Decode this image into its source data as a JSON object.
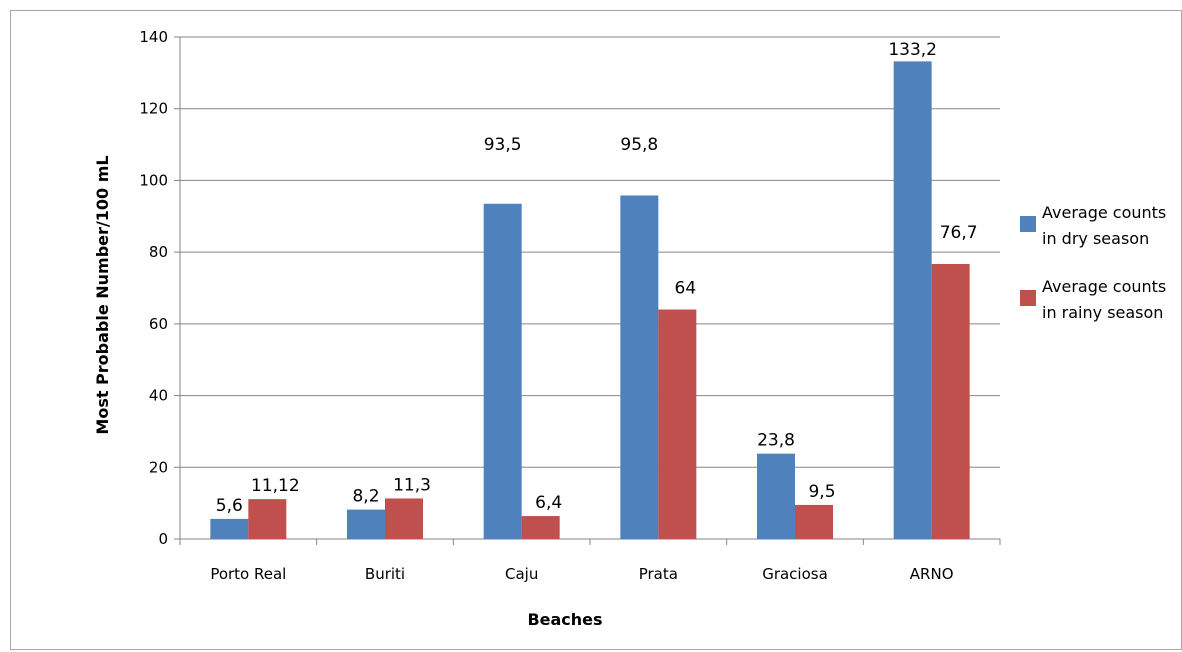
{
  "chart_data": {
    "type": "bar",
    "categories": [
      "Porto Real",
      "Buriti",
      "Caju",
      "Prata",
      "Graciosa",
      "ARNO"
    ],
    "series": [
      {
        "name": "Average counts in dry season",
        "values": [
          5.6,
          8.2,
          93.5,
          95.8,
          23.8,
          133.2
        ],
        "labels": [
          "5,6",
          "8,2",
          "93,5",
          "95,8",
          "23,8",
          "133,2"
        ],
        "color": "#4f81bd"
      },
      {
        "name": "Average counts in rainy season",
        "values": [
          11.12,
          11.3,
          6.4,
          64,
          9.5,
          76.7
        ],
        "labels": [
          "11,12",
          "11,3",
          "6,4",
          "64",
          "9,5",
          "76,7"
        ],
        "color": "#c0504d"
      }
    ],
    "yticks": [
      0,
      20,
      40,
      60,
      80,
      100,
      120,
      140
    ],
    "ylim": [
      0,
      140
    ],
    "xlabel": "Beaches",
    "ylabel": "Most Probable Number/100 mL",
    "grid": true,
    "legend_position": "right"
  }
}
